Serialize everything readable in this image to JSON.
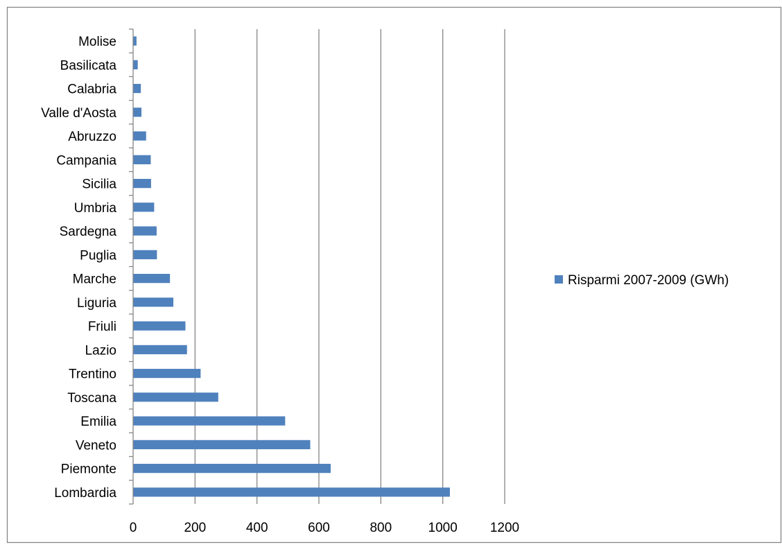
{
  "chart_data": {
    "type": "bar",
    "orientation": "horizontal",
    "categories": [
      "Lombardia",
      "Piemonte",
      "Veneto",
      "Emilia",
      "Toscana",
      "Trentino",
      "Lazio",
      "Friuli",
      "Liguria",
      "Marche",
      "Puglia",
      "Sardegna",
      "Umbria",
      "Sicilia",
      "Campania",
      "Abruzzo",
      "Valle d'Aosta",
      "Calabria",
      "Basilicata",
      "Molise"
    ],
    "series": [
      {
        "name": "Risparmi 2007-2009 (GWh)",
        "color": "#4f81bd",
        "values": [
          1023,
          638,
          572,
          491,
          275,
          218,
          174,
          169,
          130,
          119,
          77,
          76,
          68,
          58,
          57,
          42,
          27,
          25,
          15,
          11
        ]
      }
    ],
    "xlim": [
      0,
      1200
    ],
    "xticks": [
      0,
      200,
      400,
      600,
      800,
      1000,
      1200
    ],
    "grid": "vertical",
    "legend": "right",
    "title": "",
    "xlabel": "",
    "ylabel": "",
    "colors": {
      "bar": "#4f81bd",
      "grid": "#868686",
      "axis": "#868686",
      "frame": "#868686"
    }
  }
}
